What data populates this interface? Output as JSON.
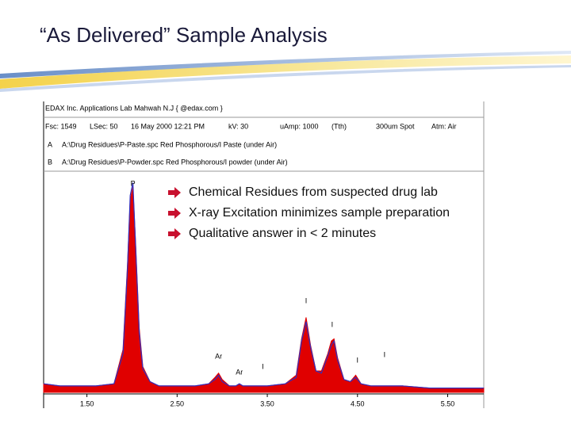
{
  "title": "“As Delivered” Sample Analysis",
  "bullets": [
    "Chemical Residues from suspected drug lab",
    "X-ray Excitation minimizes sample preparation",
    "Qualitative answer in < 2 minutes"
  ],
  "chart_data": {
    "type": "line",
    "header": "EDAX Inc.   Applications Lab Mahwah N.J  { @edax.com }",
    "fields": [
      "Fsc: 1549",
      "LSec: 50",
      "16 May 2000  12:21 PM",
      "kV: 30",
      "uAmp: 1000",
      "(Tth)",
      "300um Spot",
      "Atm: Air"
    ],
    "x": [
      1.02,
      1.2,
      1.4,
      1.6,
      1.8,
      1.9,
      1.95,
      1.98,
      2.01,
      2.04,
      2.08,
      2.12,
      2.2,
      2.3,
      2.5,
      2.7,
      2.85,
      2.92,
      2.96,
      3.0,
      3.08,
      3.15,
      3.19,
      3.23,
      3.3,
      3.5,
      3.7,
      3.82,
      3.88,
      3.93,
      3.98,
      4.04,
      4.1,
      4.17,
      4.21,
      4.24,
      4.28,
      4.35,
      4.42,
      4.48,
      4.54,
      4.65,
      4.8,
      5.0,
      5.3,
      5.6,
      5.9
    ],
    "series": [
      {
        "name": "A",
        "label": "A:\\Drug Residues\\P-Paste.spc  Red Phosphorous/I Paste  (under Air)",
        "color": "#e00000",
        "values": [
          4,
          3,
          3,
          3,
          4,
          20,
          60,
          90,
          96,
          70,
          30,
          12,
          5,
          3,
          3,
          3,
          4,
          7,
          9,
          6,
          3,
          3,
          4,
          3,
          3,
          3,
          4,
          8,
          25,
          35,
          22,
          10,
          10,
          18,
          24,
          25,
          16,
          6,
          5,
          8,
          4,
          3,
          3,
          3,
          2,
          2,
          2
        ]
      },
      {
        "name": "B",
        "label": "A:\\Drug Residues\\P-Powder.spc  Red Phosphorous/I powder (under Air)",
        "color": "#3030c0",
        "values": [
          4,
          3,
          3,
          3,
          4,
          18,
          58,
          92,
          98,
          68,
          28,
          11,
          5,
          3,
          3,
          3,
          4,
          6,
          8,
          5,
          3,
          3,
          4,
          3,
          3,
          3,
          4,
          7,
          24,
          33,
          21,
          10,
          9,
          17,
          22,
          24,
          15,
          6,
          5,
          7,
          4,
          3,
          3,
          3,
          2,
          2,
          2
        ]
      }
    ],
    "peak_labels": [
      {
        "text": "P",
        "x": 2.01
      },
      {
        "text": "Ar",
        "x": 2.96
      },
      {
        "text": "Ar",
        "x": 3.19
      },
      {
        "text": "I",
        "x": 3.45
      },
      {
        "text": "I",
        "x": 3.93
      },
      {
        "text": "I",
        "x": 4.22
      },
      {
        "text": "I",
        "x": 4.5
      },
      {
        "text": "I",
        "x": 4.8
      }
    ],
    "xlim": [
      1.02,
      5.9
    ],
    "ylim": [
      0,
      100
    ],
    "xticks": [
      {
        "value": 1.5,
        "label": "1.50"
      },
      {
        "value": 2.5,
        "label": "2.50"
      },
      {
        "value": 3.5,
        "label": "3.50"
      },
      {
        "value": 4.5,
        "label": "4.50"
      },
      {
        "value": 5.5,
        "label": "5.50"
      }
    ]
  }
}
